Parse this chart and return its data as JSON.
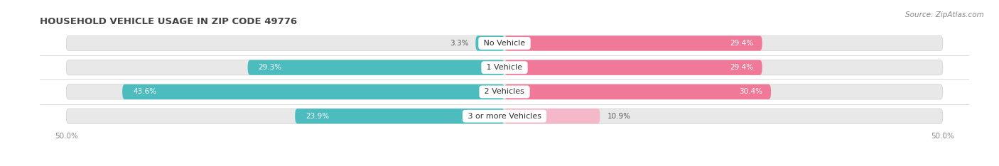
{
  "title": "HOUSEHOLD VEHICLE USAGE IN ZIP CODE 49776",
  "source": "Source: ZipAtlas.com",
  "categories": [
    "No Vehicle",
    "1 Vehicle",
    "2 Vehicles",
    "3 or more Vehicles"
  ],
  "owner_values": [
    3.3,
    29.3,
    43.6,
    23.9
  ],
  "renter_values": [
    29.4,
    29.4,
    30.4,
    10.9
  ],
  "owner_color": "#4cbcbf",
  "renter_color": "#f07898",
  "renter_light_color": "#f5b8c8",
  "bg_pill_color": "#e8e8e8",
  "figsize": [
    14.06,
    2.34
  ],
  "dpi": 100,
  "title_fontsize": 9.5,
  "label_fontsize": 7.5,
  "category_fontsize": 8,
  "axis_fontsize": 7.5,
  "source_fontsize": 7.5,
  "bar_height": 0.62,
  "x_range": 50
}
